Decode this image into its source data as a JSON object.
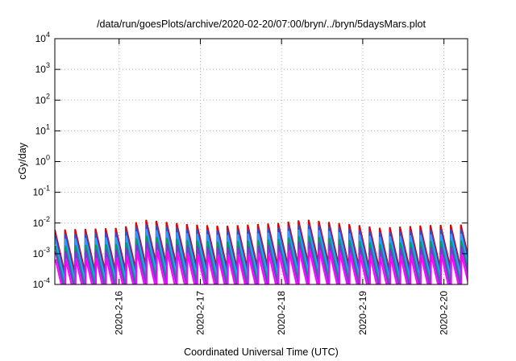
{
  "chart_data": {
    "type": "line",
    "title": "/data/run/goesPlots/archive/2020-02-20/07:00/bryn/../bryn/5daysMars.plot",
    "xlabel": "Coordinated Universal Time (UTC)",
    "ylabel": "cGy/day",
    "y_scale": "log",
    "ylim": [
      0.0001,
      10000
    ],
    "y_ticks": [
      {
        "base": "10",
        "exp": "-4"
      },
      {
        "base": "10",
        "exp": "-3"
      },
      {
        "base": "10",
        "exp": "-2"
      },
      {
        "base": "10",
        "exp": "-1"
      },
      {
        "base": "10",
        "exp": "0"
      },
      {
        "base": "10",
        "exp": "1"
      },
      {
        "base": "10",
        "exp": "2"
      },
      {
        "base": "10",
        "exp": "3"
      },
      {
        "base": "10",
        "exp": "4"
      }
    ],
    "x_range_days": [
      "2020-02-15T05:00",
      "2020-02-20T07:00"
    ],
    "x_ticks": [
      "2020-2-16",
      "2020-2-17",
      "2020-2-18",
      "2020-2-19",
      "2020-2-20"
    ],
    "grid": true,
    "sawtooth": {
      "period_hours": 3,
      "amplitude_decades": 1.4,
      "peak_level_by_hour": [
        [
          0,
          0.006
        ],
        [
          20,
          0.007
        ],
        [
          26,
          0.013
        ],
        [
          40,
          0.009
        ],
        [
          50,
          0.008
        ],
        [
          66,
          0.01
        ],
        [
          74,
          0.013
        ],
        [
          88,
          0.009
        ],
        [
          96,
          0.007
        ],
        [
          110,
          0.0085
        ],
        [
          122,
          0.009
        ]
      ]
    },
    "series": [
      {
        "color": "#e30000",
        "peak_factor": 1.0
      },
      {
        "color": "#2050e0",
        "peak_factor": 0.72
      },
      {
        "color": "#2aa0ff",
        "peak_factor": 0.5
      },
      {
        "color": "#00a060",
        "peak_factor": 0.3
      },
      {
        "color": "#8a2be2",
        "peak_factor": 0.2
      },
      {
        "color": "#ff00ff",
        "peak_factor": 0.11
      }
    ]
  }
}
